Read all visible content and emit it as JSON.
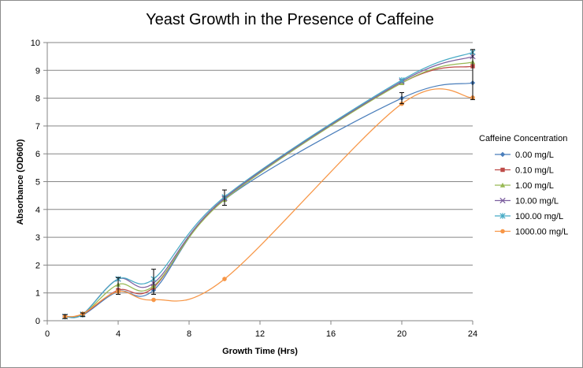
{
  "chart_data": {
    "type": "line",
    "title": "Yeast Growth in the Presence of Caffeine",
    "xlabel": "Growth Time (Hrs)",
    "ylabel": "Absorbance (OD600)",
    "xlim": [
      0,
      24
    ],
    "ylim": [
      0,
      10
    ],
    "xticks": [
      "0",
      "4",
      "8",
      "12",
      "16",
      "20",
      "24"
    ],
    "yticks": [
      "0",
      "1",
      "2",
      "3",
      "4",
      "5",
      "6",
      "7",
      "8",
      "9",
      "10"
    ],
    "grid": "horizontal",
    "smoothed": true,
    "legend": {
      "title": "Caffeine Concentration",
      "position": "right"
    },
    "x": [
      1,
      2,
      4,
      6,
      10,
      20,
      24
    ],
    "series": [
      {
        "name": "0.00 mg/L",
        "color": "#4a7ebb",
        "marker": "diamond",
        "values": [
          0.15,
          0.2,
          1.05,
          1.1,
          4.35,
          8.0,
          8.55
        ]
      },
      {
        "name": "0.10 mg/L",
        "color": "#be4b48",
        "marker": "square",
        "values": [
          0.15,
          0.22,
          1.1,
          1.2,
          4.4,
          8.55,
          9.15
        ]
      },
      {
        "name": "1.00 mg/L",
        "color": "#98b954",
        "marker": "triangle",
        "values": [
          0.15,
          0.22,
          1.3,
          1.25,
          4.35,
          8.55,
          9.3
        ]
      },
      {
        "name": "10.00 mg/L",
        "color": "#7d60a0",
        "marker": "x",
        "values": [
          0.15,
          0.23,
          1.5,
          1.35,
          4.4,
          8.6,
          9.5
        ]
      },
      {
        "name": "100.00 mg/L",
        "color": "#46aac5",
        "marker": "star",
        "values": [
          0.15,
          0.23,
          1.5,
          1.5,
          4.45,
          8.65,
          9.65
        ]
      },
      {
        "name": "1000.00 mg/L",
        "color": "#f79646",
        "marker": "circle",
        "values": [
          0.15,
          0.25,
          1.05,
          0.75,
          1.5,
          7.8,
          8.02
        ]
      }
    ],
    "error_bars": [
      {
        "x": 1,
        "low": 0.08,
        "high": 0.22
      },
      {
        "x": 2,
        "low": 0.15,
        "high": 0.28
      },
      {
        "x": 4,
        "low": 0.95,
        "high": 1.55
      },
      {
        "x": 6,
        "low": 0.95,
        "high": 1.85
      },
      {
        "x": 10,
        "low": 4.15,
        "high": 4.7
      },
      {
        "x": 20,
        "low": 7.8,
        "high": 8.2
      },
      {
        "x": 24,
        "low": 7.95,
        "high": 9.75
      }
    ]
  }
}
